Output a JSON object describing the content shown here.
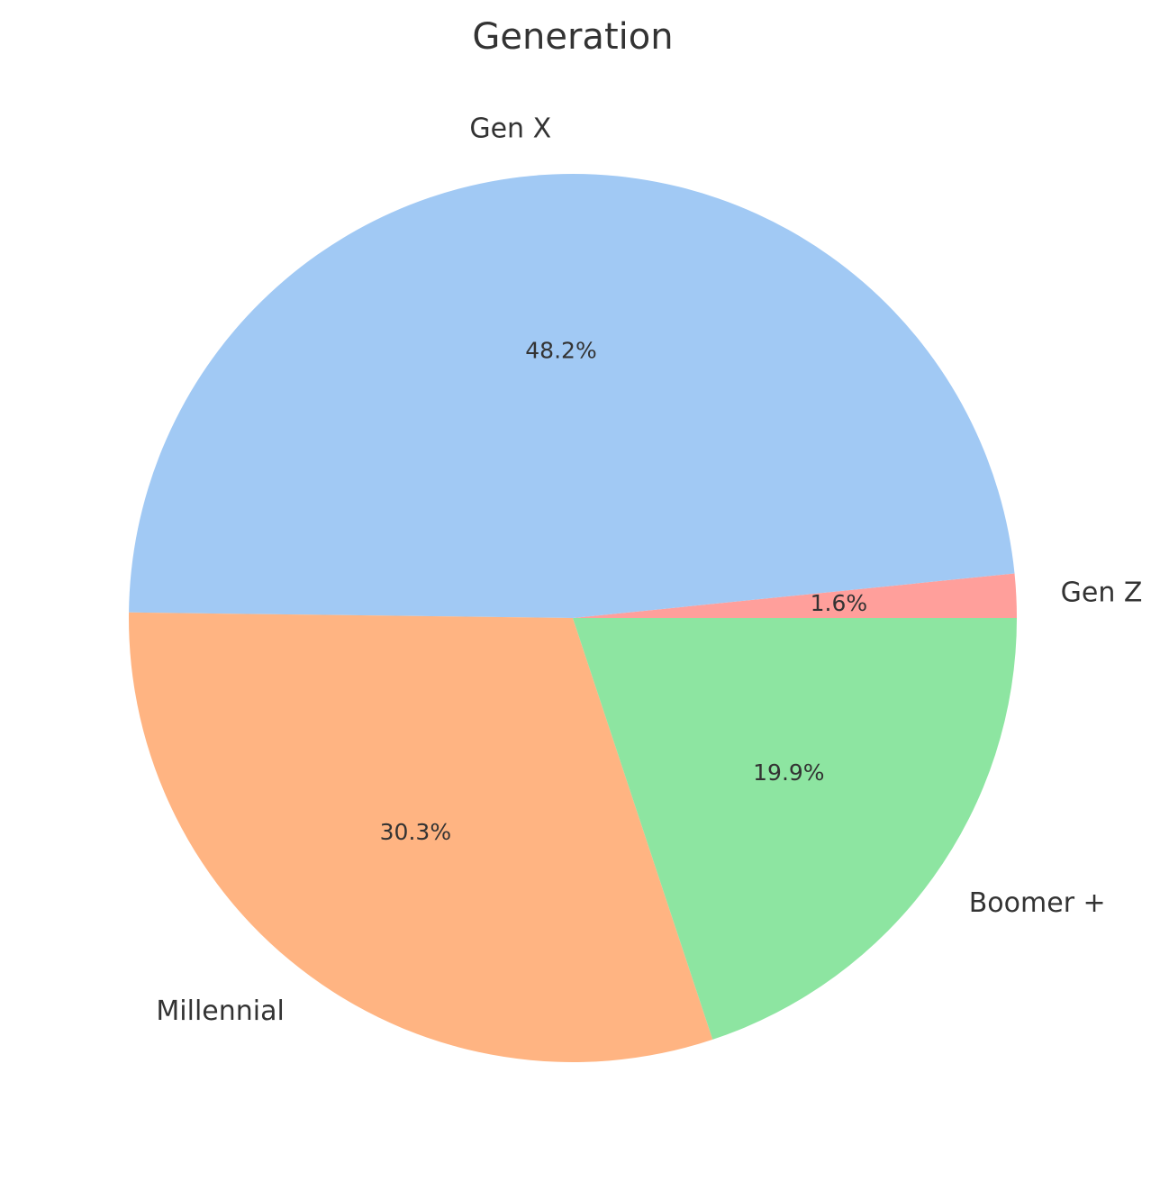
{
  "chart_data": {
    "type": "pie",
    "title": "Generation",
    "categories": [
      "Gen Z",
      "Gen X",
      "Millennial",
      "Boomer +"
    ],
    "values": [
      1.6,
      48.2,
      30.3,
      19.9
    ],
    "value_labels": [
      "1.6%",
      "48.2%",
      "30.3%",
      "19.9%"
    ],
    "colors": [
      "#ff9f9b",
      "#a1c9f4",
      "#ffb482",
      "#8de5a1"
    ],
    "start_angle_deg": 0,
    "direction": "counterclockwise",
    "legend": "none"
  }
}
